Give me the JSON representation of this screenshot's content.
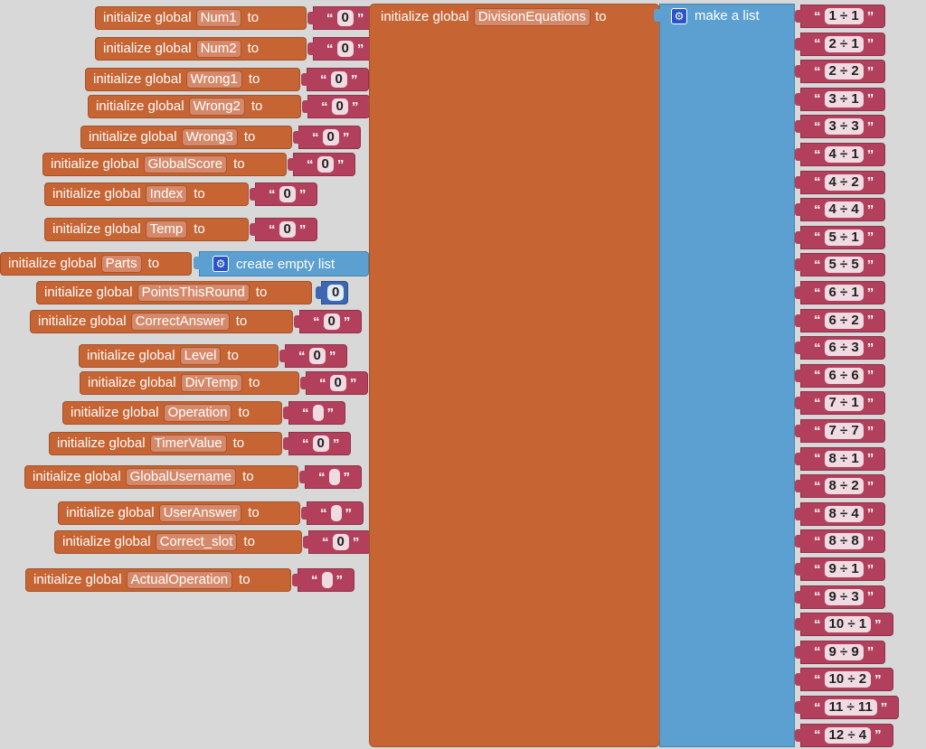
{
  "keyword_initialize": "initialize global",
  "keyword_to": "to",
  "keyword_create_empty_list": "create empty list",
  "keyword_make_list": "make a list",
  "gear_icon": "gear-icon",
  "colors": {
    "variable_block": "#c76434",
    "text_block": "#b2405c",
    "list_block": "#5ba0d0",
    "number_block": "#3c68b0"
  },
  "globals": [
    {
      "name": "Num1",
      "value": "0",
      "type": "text"
    },
    {
      "name": "Num2",
      "value": "0",
      "type": "text"
    },
    {
      "name": "Wrong1",
      "value": "0",
      "type": "text"
    },
    {
      "name": "Wrong2",
      "value": "0",
      "type": "text"
    },
    {
      "name": "Wrong3",
      "value": "0",
      "type": "text"
    },
    {
      "name": "GlobalScore",
      "value": "0",
      "type": "text"
    },
    {
      "name": "Index",
      "value": "0",
      "type": "text"
    },
    {
      "name": "Temp",
      "value": "0",
      "type": "text"
    },
    {
      "name": "Parts",
      "value": "create empty list",
      "type": "list"
    },
    {
      "name": "PointsThisRound",
      "value": "0",
      "type": "number"
    },
    {
      "name": "CorrectAnswer",
      "value": "0",
      "type": "text"
    },
    {
      "name": "Level",
      "value": "0",
      "type": "text"
    },
    {
      "name": "DivTemp",
      "value": "0",
      "type": "text"
    },
    {
      "name": "Operation",
      "value": "",
      "type": "text"
    },
    {
      "name": "TimerValue",
      "value": "0",
      "type": "text"
    },
    {
      "name": "GlobalUsername",
      "value": "",
      "type": "text"
    },
    {
      "name": "UserAnswer",
      "value": "",
      "type": "text"
    },
    {
      "name": "Correct_slot",
      "value": "0",
      "type": "text"
    },
    {
      "name": "ActualOperation",
      "value": "",
      "type": "text"
    }
  ],
  "division_list": {
    "name": "DivisionEquations",
    "items": [
      "1 ÷ 1",
      "2 ÷ 1",
      "2 ÷ 2",
      "3 ÷ 1",
      "3 ÷ 3",
      "4 ÷ 1",
      "4 ÷ 2",
      "4 ÷ 4",
      "5 ÷ 1",
      "5 ÷ 5",
      "6 ÷ 1",
      "6 ÷ 2",
      "6 ÷ 3",
      "6 ÷ 6",
      "7 ÷ 1",
      "7 ÷ 7",
      "8 ÷ 1",
      "8 ÷ 2",
      "8 ÷ 4",
      "8 ÷ 8",
      "9 ÷ 1",
      "9 ÷ 3",
      "10 ÷ 1",
      "9 ÷ 9",
      "10 ÷ 2",
      "11 ÷ 11",
      "12 ÷ 4"
    ]
  }
}
